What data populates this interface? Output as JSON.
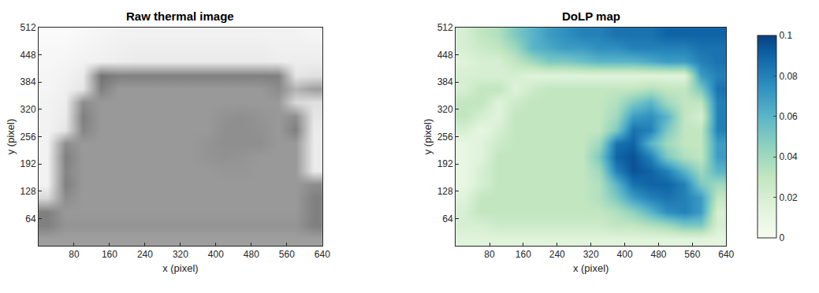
{
  "chart_data": [
    {
      "type": "heatmap",
      "title": "Raw thermal image",
      "x_label": "x (pixel)",
      "y_label": "y (pixel)",
      "color": "gray",
      "xlim": [
        0,
        640
      ],
      "ylim": [
        0,
        512
      ],
      "xticks": [
        80,
        160,
        240,
        320,
        400,
        480,
        560,
        640
      ],
      "yticks": [
        64,
        128,
        192,
        256,
        320,
        384,
        448,
        512
      ],
      "zlim": [
        0,
        1
      ],
      "x": [
        20,
        60,
        100,
        140,
        180,
        220,
        260,
        300,
        340,
        380,
        420,
        460,
        500,
        540,
        580,
        620
      ],
      "y": [
        16,
        48,
        80,
        112,
        144,
        176,
        208,
        240,
        272,
        304,
        336,
        368,
        400,
        432,
        464,
        496
      ],
      "z": [
        [
          0.62,
          0.62,
          0.62,
          0.62,
          0.62,
          0.62,
          0.62,
          0.62,
          0.62,
          0.62,
          0.62,
          0.62,
          0.62,
          0.62,
          0.62,
          0.62
        ],
        [
          0.5,
          0.58,
          0.58,
          0.58,
          0.58,
          0.58,
          0.58,
          0.58,
          0.58,
          0.58,
          0.58,
          0.58,
          0.58,
          0.58,
          0.58,
          0.5
        ],
        [
          0.5,
          0.6,
          0.6,
          0.6,
          0.6,
          0.6,
          0.6,
          0.6,
          0.6,
          0.6,
          0.6,
          0.6,
          0.6,
          0.6,
          0.6,
          0.5
        ],
        [
          0.85,
          0.55,
          0.6,
          0.6,
          0.6,
          0.6,
          0.6,
          0.6,
          0.6,
          0.6,
          0.6,
          0.6,
          0.6,
          0.6,
          0.6,
          0.5
        ],
        [
          0.95,
          0.5,
          0.6,
          0.6,
          0.6,
          0.6,
          0.6,
          0.6,
          0.6,
          0.6,
          0.6,
          0.6,
          0.6,
          0.6,
          0.6,
          0.55
        ],
        [
          0.95,
          0.52,
          0.6,
          0.6,
          0.6,
          0.6,
          0.6,
          0.6,
          0.6,
          0.6,
          0.59,
          0.59,
          0.6,
          0.6,
          0.6,
          0.92
        ],
        [
          0.95,
          0.5,
          0.6,
          0.6,
          0.6,
          0.6,
          0.6,
          0.6,
          0.6,
          0.58,
          0.57,
          0.58,
          0.6,
          0.6,
          0.6,
          0.92
        ],
        [
          0.95,
          0.55,
          0.6,
          0.6,
          0.6,
          0.6,
          0.6,
          0.6,
          0.6,
          0.58,
          0.56,
          0.56,
          0.56,
          0.6,
          0.6,
          0.92
        ],
        [
          0.95,
          0.9,
          0.52,
          0.6,
          0.6,
          0.6,
          0.6,
          0.6,
          0.6,
          0.6,
          0.56,
          0.56,
          0.57,
          0.6,
          0.5,
          0.92
        ],
        [
          0.95,
          0.92,
          0.5,
          0.6,
          0.6,
          0.6,
          0.6,
          0.6,
          0.6,
          0.6,
          0.57,
          0.56,
          0.58,
          0.6,
          0.55,
          0.9
        ],
        [
          0.95,
          0.93,
          0.55,
          0.6,
          0.6,
          0.6,
          0.6,
          0.6,
          0.6,
          0.6,
          0.6,
          0.6,
          0.6,
          0.6,
          0.85,
          0.88
        ],
        [
          0.96,
          0.94,
          0.9,
          0.5,
          0.6,
          0.6,
          0.6,
          0.6,
          0.6,
          0.6,
          0.6,
          0.6,
          0.6,
          0.55,
          0.7,
          0.62
        ],
        [
          0.96,
          0.95,
          0.92,
          0.45,
          0.5,
          0.5,
          0.5,
          0.5,
          0.5,
          0.5,
          0.5,
          0.5,
          0.5,
          0.5,
          0.9,
          0.88
        ],
        [
          0.97,
          0.96,
          0.95,
          0.94,
          0.93,
          0.92,
          0.92,
          0.92,
          0.92,
          0.92,
          0.92,
          0.92,
          0.92,
          0.93,
          0.93,
          0.93
        ],
        [
          0.97,
          0.97,
          0.96,
          0.95,
          0.94,
          0.93,
          0.93,
          0.93,
          0.93,
          0.93,
          0.93,
          0.93,
          0.93,
          0.94,
          0.94,
          0.94
        ],
        [
          0.98,
          0.98,
          0.97,
          0.96,
          0.95,
          0.95,
          0.95,
          0.95,
          0.95,
          0.95,
          0.95,
          0.95,
          0.95,
          0.95,
          0.95,
          0.96
        ]
      ]
    },
    {
      "type": "heatmap",
      "title": "DoLP map",
      "x_label": "x (pixel)",
      "y_label": "y (pixel)",
      "color": "GnBu",
      "xlim": [
        0,
        640
      ],
      "ylim": [
        0,
        512
      ],
      "xticks": [
        80,
        160,
        240,
        320,
        400,
        480,
        560,
        640
      ],
      "yticks": [
        64,
        128,
        192,
        256,
        320,
        384,
        448,
        512
      ],
      "colorbar": {
        "range": [
          0,
          0.1
        ],
        "ticks": [
          0,
          0.02,
          0.04,
          0.06,
          0.08,
          0.1
        ]
      },
      "x": [
        20,
        60,
        100,
        140,
        180,
        220,
        260,
        300,
        340,
        380,
        420,
        460,
        500,
        540,
        580,
        620
      ],
      "y": [
        16,
        48,
        80,
        112,
        144,
        176,
        208,
        240,
        272,
        304,
        336,
        368,
        400,
        432,
        464,
        496
      ],
      "z": [
        [
          0.015,
          0.015,
          0.015,
          0.015,
          0.015,
          0.015,
          0.015,
          0.015,
          0.015,
          0.015,
          0.015,
          0.015,
          0.015,
          0.015,
          0.015,
          0.012
        ],
        [
          0.02,
          0.02,
          0.025,
          0.025,
          0.025,
          0.025,
          0.025,
          0.025,
          0.025,
          0.03,
          0.03,
          0.035,
          0.04,
          0.05,
          0.05,
          0.02
        ],
        [
          0.02,
          0.03,
          0.03,
          0.03,
          0.03,
          0.03,
          0.03,
          0.03,
          0.03,
          0.035,
          0.045,
          0.06,
          0.075,
          0.08,
          0.07,
          0.02
        ],
        [
          0.015,
          0.03,
          0.03,
          0.03,
          0.03,
          0.03,
          0.03,
          0.03,
          0.035,
          0.05,
          0.07,
          0.08,
          0.085,
          0.08,
          0.07,
          0.03
        ],
        [
          0.01,
          0.02,
          0.03,
          0.03,
          0.03,
          0.03,
          0.03,
          0.03,
          0.035,
          0.06,
          0.085,
          0.09,
          0.09,
          0.08,
          0.05,
          0.04
        ],
        [
          0.01,
          0.02,
          0.03,
          0.03,
          0.03,
          0.03,
          0.03,
          0.03,
          0.04,
          0.08,
          0.095,
          0.09,
          0.08,
          0.06,
          0.04,
          0.06
        ],
        [
          0.01,
          0.015,
          0.03,
          0.03,
          0.03,
          0.03,
          0.03,
          0.03,
          0.05,
          0.09,
          0.095,
          0.08,
          0.05,
          0.035,
          0.03,
          0.07
        ],
        [
          0.01,
          0.015,
          0.025,
          0.03,
          0.03,
          0.03,
          0.03,
          0.03,
          0.04,
          0.085,
          0.09,
          0.06,
          0.04,
          0.03,
          0.03,
          0.07
        ],
        [
          0.02,
          0.01,
          0.02,
          0.03,
          0.03,
          0.03,
          0.03,
          0.03,
          0.03,
          0.05,
          0.085,
          0.08,
          0.05,
          0.03,
          0.03,
          0.08
        ],
        [
          0.03,
          0.02,
          0.015,
          0.03,
          0.03,
          0.03,
          0.03,
          0.03,
          0.03,
          0.04,
          0.07,
          0.075,
          0.06,
          0.03,
          0.02,
          0.08
        ],
        [
          0.03,
          0.03,
          0.015,
          0.025,
          0.03,
          0.03,
          0.03,
          0.03,
          0.03,
          0.035,
          0.05,
          0.06,
          0.04,
          0.03,
          0.03,
          0.08
        ],
        [
          0.02,
          0.03,
          0.03,
          0.015,
          0.025,
          0.03,
          0.03,
          0.03,
          0.03,
          0.03,
          0.03,
          0.035,
          0.03,
          0.03,
          0.05,
          0.085
        ],
        [
          0.02,
          0.02,
          0.02,
          0.02,
          0.015,
          0.015,
          0.015,
          0.015,
          0.015,
          0.015,
          0.015,
          0.015,
          0.015,
          0.015,
          0.07,
          0.08
        ],
        [
          0.015,
          0.02,
          0.02,
          0.03,
          0.04,
          0.05,
          0.05,
          0.055,
          0.06,
          0.06,
          0.06,
          0.065,
          0.07,
          0.07,
          0.08,
          0.085
        ],
        [
          0.02,
          0.025,
          0.03,
          0.04,
          0.06,
          0.065,
          0.07,
          0.07,
          0.075,
          0.075,
          0.08,
          0.08,
          0.08,
          0.08,
          0.085,
          0.085
        ],
        [
          0.02,
          0.03,
          0.035,
          0.05,
          0.06,
          0.07,
          0.075,
          0.08,
          0.08,
          0.085,
          0.085,
          0.085,
          0.09,
          0.09,
          0.09,
          0.09
        ]
      ]
    }
  ]
}
